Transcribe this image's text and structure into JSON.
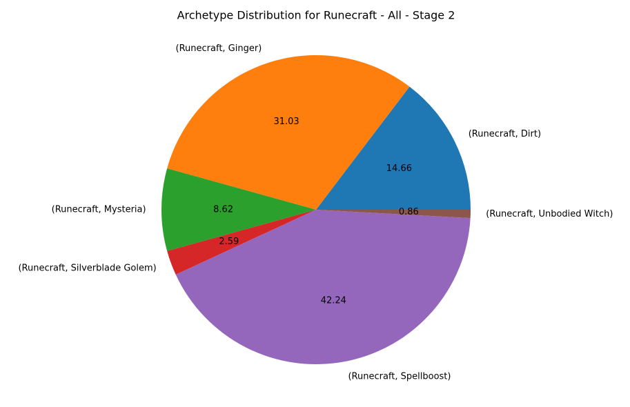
{
  "chart_data": {
    "type": "pie",
    "title": "Archetype Distribution for Runecraft - All - Stage 2",
    "slices": [
      {
        "label": "(Runecraft, Dirt)",
        "value": 14.66,
        "pct_label": "14.66",
        "color": "#1f77b4"
      },
      {
        "label": "(Runecraft, Ginger)",
        "value": 31.03,
        "pct_label": "31.03",
        "color": "#ff7f0e"
      },
      {
        "label": "(Runecraft, Mysteria)",
        "value": 8.62,
        "pct_label": "8.62",
        "color": "#2ca02c"
      },
      {
        "label": "(Runecraft, Silverblade Golem)",
        "value": 2.59,
        "pct_label": "2.59",
        "color": "#d62728"
      },
      {
        "label": "(Runecraft, Spellboost)",
        "value": 42.24,
        "pct_label": "42.24",
        "color": "#9467bd"
      },
      {
        "label": "(Runecraft, Unbodied Witch)",
        "value": 0.86,
        "pct_label": "0.86",
        "color": "#8c564b"
      }
    ],
    "start_angle_deg": 0,
    "direction": "counterclockwise",
    "legend": "none"
  }
}
